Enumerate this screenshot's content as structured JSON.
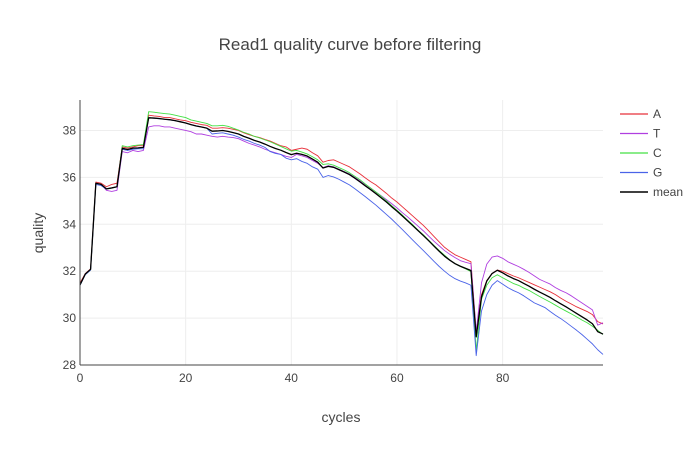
{
  "chart_data": {
    "type": "line",
    "title": "Read1 quality curve before filtering",
    "xlabel": "cycles",
    "ylabel": "quality",
    "xlim": [
      0,
      99
    ],
    "ylim": [
      28,
      39.3
    ],
    "x_ticks": [
      0,
      20,
      40,
      60,
      80
    ],
    "y_ticks": [
      28,
      30,
      32,
      34,
      36,
      38
    ],
    "grid": true,
    "legend_position": "right",
    "x": [
      0,
      1,
      2,
      3,
      4,
      5,
      6,
      7,
      8,
      9,
      10,
      11,
      12,
      13,
      14,
      15,
      16,
      17,
      18,
      19,
      20,
      21,
      22,
      23,
      24,
      25,
      26,
      27,
      28,
      29,
      30,
      31,
      32,
      33,
      34,
      35,
      36,
      37,
      38,
      39,
      40,
      41,
      42,
      43,
      44,
      45,
      46,
      47,
      48,
      49,
      50,
      51,
      52,
      53,
      54,
      55,
      56,
      57,
      58,
      59,
      60,
      61,
      62,
      63,
      64,
      65,
      66,
      67,
      68,
      69,
      70,
      71,
      72,
      73,
      74,
      75,
      76,
      77,
      78,
      79,
      80,
      81,
      82,
      83,
      84,
      85,
      86,
      87,
      88,
      89,
      90,
      91,
      92,
      93,
      94,
      95,
      96,
      97,
      98,
      99
    ],
    "series": [
      {
        "name": "A",
        "color": "#e8303a",
        "values": [
          31.5,
          31.9,
          32.1,
          35.8,
          35.75,
          35.6,
          35.7,
          35.75,
          37.3,
          37.25,
          37.3,
          37.35,
          37.35,
          38.65,
          38.62,
          38.6,
          38.55,
          38.55,
          38.5,
          38.45,
          38.42,
          38.35,
          38.3,
          38.25,
          38.22,
          38.1,
          38.1,
          38.12,
          38.1,
          38.05,
          38.0,
          37.9,
          37.82,
          37.75,
          37.7,
          37.62,
          37.55,
          37.45,
          37.35,
          37.3,
          37.15,
          37.2,
          37.25,
          37.2,
          37.05,
          36.92,
          36.65,
          36.72,
          36.75,
          36.65,
          36.55,
          36.45,
          36.3,
          36.15,
          35.98,
          35.82,
          35.68,
          35.5,
          35.32,
          35.12,
          34.95,
          34.75,
          34.55,
          34.35,
          34.15,
          33.95,
          33.72,
          33.48,
          33.25,
          33.02,
          32.85,
          32.7,
          32.6,
          32.5,
          32.4,
          29.4,
          31.0,
          31.6,
          31.9,
          32.05,
          32.0,
          31.9,
          31.8,
          31.72,
          31.62,
          31.52,
          31.42,
          31.32,
          31.22,
          31.12,
          31.0,
          30.85,
          30.72,
          30.6,
          30.48,
          30.38,
          30.28,
          30.15,
          29.85,
          29.75
        ]
      },
      {
        "name": "T",
        "color": "#b03fe0",
        "values": [
          31.4,
          31.85,
          32.05,
          35.75,
          35.7,
          35.45,
          35.4,
          35.45,
          37.1,
          37.05,
          37.15,
          37.1,
          37.15,
          38.15,
          38.2,
          38.2,
          38.15,
          38.15,
          38.1,
          38.05,
          38.0,
          37.95,
          37.85,
          37.85,
          37.8,
          37.75,
          37.72,
          37.75,
          37.72,
          37.7,
          37.65,
          37.55,
          37.45,
          37.38,
          37.3,
          37.2,
          37.12,
          37.05,
          36.98,
          36.9,
          36.85,
          36.98,
          36.92,
          36.85,
          36.72,
          36.6,
          36.42,
          36.5,
          36.45,
          36.35,
          36.25,
          36.15,
          36.0,
          35.85,
          35.7,
          35.55,
          35.38,
          35.22,
          35.05,
          34.88,
          34.7,
          34.5,
          34.32,
          34.12,
          33.92,
          33.72,
          33.5,
          33.28,
          33.08,
          32.88,
          32.72,
          32.58,
          32.45,
          32.38,
          32.32,
          29.4,
          31.5,
          32.3,
          32.6,
          32.65,
          32.55,
          32.4,
          32.3,
          32.2,
          32.08,
          31.95,
          31.8,
          31.65,
          31.55,
          31.45,
          31.3,
          31.18,
          31.08,
          30.95,
          30.8,
          30.65,
          30.5,
          30.35,
          29.7,
          29.8
        ]
      },
      {
        "name": "C",
        "color": "#43e043",
        "values": [
          31.4,
          31.85,
          32.05,
          35.75,
          35.7,
          35.5,
          35.55,
          35.6,
          37.35,
          37.3,
          37.35,
          37.38,
          37.4,
          38.8,
          38.78,
          38.75,
          38.72,
          38.7,
          38.65,
          38.6,
          38.55,
          38.45,
          38.4,
          38.35,
          38.3,
          38.2,
          38.2,
          38.22,
          38.18,
          38.1,
          38.02,
          37.92,
          37.85,
          37.75,
          37.68,
          37.6,
          37.52,
          37.42,
          37.32,
          37.22,
          37.12,
          37.15,
          37.08,
          37.0,
          36.88,
          36.75,
          36.55,
          36.58,
          36.52,
          36.42,
          36.32,
          36.2,
          36.05,
          35.9,
          35.72,
          35.55,
          35.38,
          35.2,
          35.0,
          34.8,
          34.6,
          34.4,
          34.18,
          33.98,
          33.75,
          33.55,
          33.32,
          33.1,
          32.88,
          32.68,
          32.48,
          32.32,
          32.2,
          32.1,
          31.98,
          28.6,
          30.8,
          31.4,
          31.72,
          31.85,
          31.72,
          31.6,
          31.48,
          31.4,
          31.28,
          31.18,
          31.05,
          30.92,
          30.8,
          30.68,
          30.55,
          30.42,
          30.3,
          30.18,
          30.05,
          29.92,
          29.8,
          29.65,
          29.48,
          29.3
        ]
      },
      {
        "name": "G",
        "color": "#4a63e8",
        "values": [
          31.4,
          31.85,
          32.05,
          35.7,
          35.65,
          35.5,
          35.55,
          35.6,
          37.2,
          37.15,
          37.2,
          37.22,
          37.22,
          38.55,
          38.52,
          38.5,
          38.48,
          38.45,
          38.42,
          38.38,
          38.32,
          38.25,
          38.2,
          38.15,
          38.1,
          37.85,
          37.88,
          37.9,
          37.85,
          37.8,
          37.72,
          37.62,
          37.55,
          37.45,
          37.38,
          37.28,
          37.1,
          37.02,
          36.98,
          36.82,
          36.75,
          36.8,
          36.68,
          36.6,
          36.45,
          36.35,
          36.0,
          36.08,
          36.02,
          35.92,
          35.8,
          35.68,
          35.52,
          35.35,
          35.18,
          35.0,
          34.82,
          34.62,
          34.42,
          34.22,
          34.0,
          33.78,
          33.55,
          33.32,
          33.1,
          32.88,
          32.65,
          32.42,
          32.2,
          32.0,
          31.82,
          31.68,
          31.58,
          31.5,
          31.4,
          28.4,
          30.3,
          31.0,
          31.4,
          31.6,
          31.45,
          31.3,
          31.18,
          31.08,
          30.95,
          30.8,
          30.65,
          30.55,
          30.45,
          30.28,
          30.12,
          29.98,
          29.82,
          29.65,
          29.48,
          29.3,
          29.1,
          28.9,
          28.65,
          28.45
        ]
      },
      {
        "name": "mean",
        "color": "#000000",
        "values": [
          31.42,
          31.88,
          32.08,
          35.75,
          35.7,
          35.51,
          35.55,
          35.6,
          37.24,
          37.19,
          37.25,
          37.26,
          37.28,
          38.54,
          38.53,
          38.51,
          38.48,
          38.46,
          38.42,
          38.37,
          38.32,
          38.25,
          38.19,
          38.15,
          38.1,
          37.97,
          37.98,
          38.0,
          37.96,
          37.91,
          37.85,
          37.75,
          37.67,
          37.58,
          37.51,
          37.42,
          37.32,
          37.23,
          37.16,
          37.06,
          36.97,
          37.03,
          36.98,
          36.91,
          36.78,
          36.65,
          36.4,
          36.47,
          36.43,
          36.33,
          36.23,
          36.12,
          35.97,
          35.81,
          35.64,
          35.48,
          35.31,
          35.13,
          34.95,
          34.75,
          34.56,
          34.36,
          34.15,
          33.94,
          33.73,
          33.52,
          33.3,
          33.07,
          32.85,
          32.64,
          32.47,
          32.32,
          32.21,
          32.12,
          32.03,
          29.2,
          30.9,
          31.58,
          31.9,
          32.04,
          31.93,
          31.8,
          31.69,
          31.6,
          31.48,
          31.36,
          31.23,
          31.11,
          31.0,
          30.88,
          30.74,
          30.61,
          30.48,
          30.34,
          30.2,
          30.06,
          29.92,
          29.76,
          29.42,
          29.32
        ]
      }
    ]
  }
}
